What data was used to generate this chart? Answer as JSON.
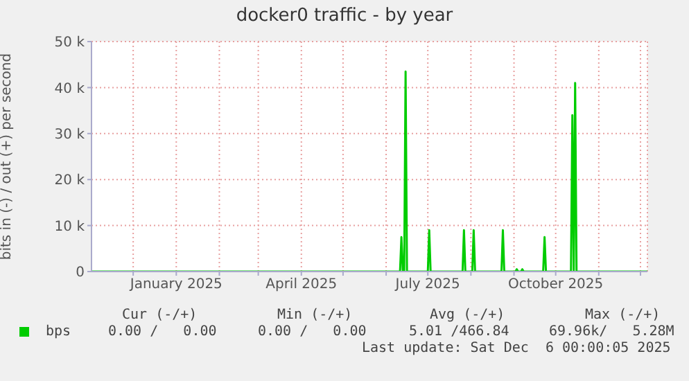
{
  "chart_data": {
    "type": "line",
    "title": "docker0 traffic - by year",
    "ylabel": "bits in (-) / out (+) per second",
    "x": [
      "2024-11-01",
      "2025-06-11",
      "2025-06-12",
      "2025-06-13",
      "2025-06-14",
      "2025-06-15",
      "2025-06-16",
      "2025-07-01",
      "2025-07-02",
      "2025-07-03",
      "2025-07-26",
      "2025-07-27",
      "2025-07-28",
      "2025-08-02",
      "2025-08-03",
      "2025-08-04",
      "2025-08-23",
      "2025-08-24",
      "2025-08-25",
      "2025-09-02",
      "2025-09-03",
      "2025-09-04",
      "2025-09-06",
      "2025-09-07",
      "2025-09-08",
      "2025-09-22",
      "2025-09-23",
      "2025-09-24",
      "2025-10-12",
      "2025-10-13",
      "2025-10-14",
      "2025-10-15",
      "2025-10-16",
      "2025-12-06"
    ],
    "series": [
      {
        "name": "bps",
        "color": "#00cc00",
        "values": [
          0,
          0,
          7500,
          0,
          0,
          43500,
          0,
          0,
          9000,
          0,
          0,
          9000,
          0,
          0,
          9000,
          0,
          0,
          9000,
          0,
          0,
          500,
          0,
          0,
          500,
          0,
          0,
          7500,
          0,
          0,
          34000,
          0,
          41000,
          0,
          0
        ]
      }
    ],
    "xlim": [
      "2024-11-01",
      "2025-12-06"
    ],
    "xticks": [
      {
        "value": "2024-12-01",
        "label": null
      },
      {
        "value": "2025-01-01",
        "label": "January 2025"
      },
      {
        "value": "2025-02-01",
        "label": null
      },
      {
        "value": "2025-03-01",
        "label": null
      },
      {
        "value": "2025-04-01",
        "label": "April 2025"
      },
      {
        "value": "2025-05-01",
        "label": null
      },
      {
        "value": "2025-06-01",
        "label": null
      },
      {
        "value": "2025-07-01",
        "label": "July 2025"
      },
      {
        "value": "2025-08-01",
        "label": null
      },
      {
        "value": "2025-09-01",
        "label": null
      },
      {
        "value": "2025-10-01",
        "label": "October 2025"
      },
      {
        "value": "2025-11-01",
        "label": null
      },
      {
        "value": "2025-12-01",
        "label": null
      }
    ],
    "ylim": [
      0,
      50000
    ],
    "yticks": [
      0,
      {
        "value": 10000,
        "label": "10 k"
      },
      {
        "value": 20000,
        "label": "20 k"
      },
      {
        "value": 30000,
        "label": "30 k"
      },
      {
        "value": 40000,
        "label": "40 k"
      },
      {
        "value": 50000,
        "label": "50 k"
      }
    ],
    "grid": true,
    "legend": "bottom",
    "marker": "none",
    "line_style": "solid",
    "annotations": [
      "Cur (-/+)",
      "Min (-/+)",
      "Avg (-/+)",
      "Max (-/+)",
      "0.00 /   0.00",
      "0.00 /   0.00",
      "5.01 /466.84",
      "69.96k/   5.28M",
      "Last update: Sat Dec  6 00:00:05 2025"
    ]
  }
}
